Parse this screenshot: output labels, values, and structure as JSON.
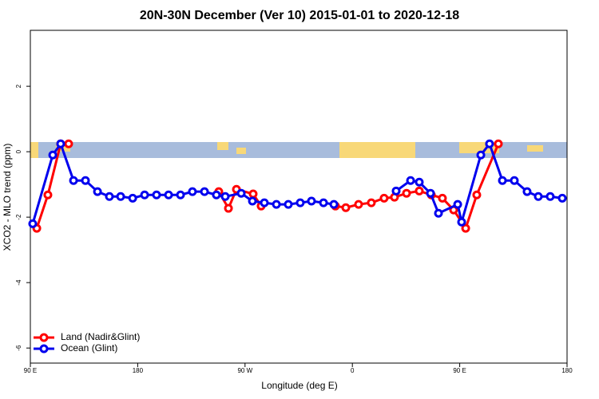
{
  "chart_data": {
    "type": "line",
    "title": "20N-30N December (Ver 10)   2015-01-01 to 2020-12-18",
    "x_label": "Longitude (deg E)",
    "y_label": "XCO2 - MLO trend (ppm)",
    "xlim": [
      90,
      540
    ],
    "ylim": [
      -6.46,
      3.71
    ],
    "xticks": [
      {
        "value": 90,
        "label": "90 E"
      },
      180,
      {
        "value": 270,
        "label": "90 W"
      },
      {
        "value": 360,
        "label": "0"
      },
      {
        "value": 450,
        "label": "90 E"
      },
      {
        "value": 540,
        "label": "180"
      }
    ],
    "yticks": [
      -6,
      -4,
      -2,
      0,
      2
    ],
    "legend": "bottom-left",
    "series": [
      {
        "name": "Land (Nadir&Glint)",
        "color": "#ff0000",
        "x": [
          95.4,
          104.7,
          115.4,
          122.1,
          null,
          248.0,
          256.1,
          262.8,
          276.8,
          283.5,
          null,
          345.8,
          354.5,
          365.2,
          375.9,
          386.6,
          395.3,
          405.4,
          416.1,
          426.2,
          435.5,
          444.9,
          455.0,
          464.3,
          482.4
        ],
        "values": [
          -2.34,
          -1.32,
          0.24,
          0.24,
          null,
          -1.22,
          -1.73,
          -1.15,
          -1.29,
          -1.66,
          null,
          -1.66,
          -1.71,
          -1.61,
          -1.56,
          -1.42,
          -1.39,
          -1.27,
          -1.2,
          -1.32,
          -1.42,
          -1.78,
          -2.34,
          -1.32,
          0.24
        ]
      },
      {
        "name": "Ocean (Glint)",
        "color": "#0000ee",
        "x": [
          92.0,
          108.8,
          115.4,
          126.2,
          136.2,
          146.3,
          156.3,
          165.7,
          175.8,
          185.8,
          195.8,
          205.9,
          215.9,
          225.9,
          236.0,
          246.0,
          253.4,
          266.8,
          276.2,
          286.2,
          296.3,
          306.3,
          316.3,
          325.7,
          335.8,
          344.5,
          null,
          396.7,
          408.8,
          416.1,
          425.5,
          432.2,
          448.3,
          451.6,
          467.7,
          475.0,
          485.8,
          495.8,
          506.5,
          515.9,
          525.9,
          536.0
        ],
        "values": [
          -2.2,
          -0.1,
          0.24,
          -0.88,
          -0.88,
          -1.22,
          -1.37,
          -1.37,
          -1.42,
          -1.32,
          -1.32,
          -1.32,
          -1.32,
          -1.22,
          -1.22,
          -1.32,
          -1.37,
          -1.27,
          -1.51,
          -1.56,
          -1.61,
          -1.61,
          -1.56,
          -1.51,
          -1.56,
          -1.61,
          null,
          -1.2,
          -0.88,
          -0.93,
          -1.27,
          -1.88,
          -1.61,
          -2.15,
          -0.1,
          0.24,
          -0.88,
          -0.88,
          -1.22,
          -1.37,
          -1.37,
          -1.42
        ]
      }
    ]
  }
}
